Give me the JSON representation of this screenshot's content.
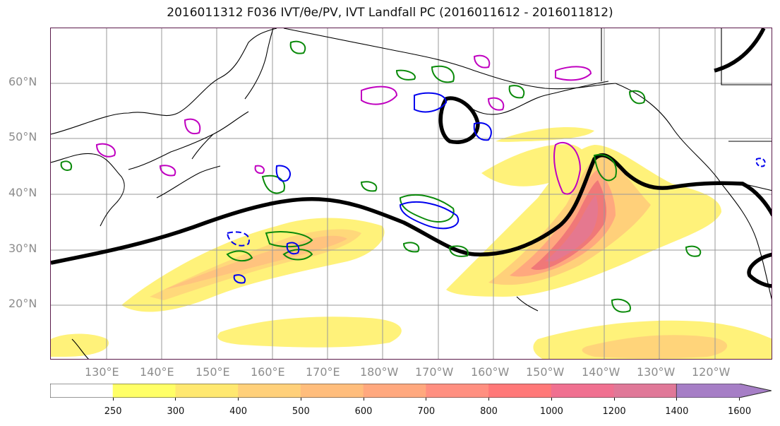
{
  "title": "2016011312 F036 IVT/θe/PV, IVT Landfall PC (2016011612 - 2016011812)",
  "map": {
    "latitude_labels": [
      "60°N",
      "50°N",
      "40°N",
      "30°N",
      "20°N"
    ],
    "longitude_labels": [
      "130°E",
      "140°E",
      "150°E",
      "160°E",
      "170°E",
      "180°W",
      "170°W",
      "160°W",
      "150°W",
      "140°W",
      "130°W",
      "120°W"
    ],
    "grid": true,
    "contour_colors": {
      "ivt_principal_component": "#000000",
      "positive_pv": "#0a8a0a",
      "negative_pv": "#0000ee",
      "theta_e": "#c000c0",
      "coastline": "#000000"
    }
  },
  "colorbar": {
    "ticks": [
      "250",
      "300",
      "400",
      "500",
      "600",
      "700",
      "800",
      "1000",
      "1200",
      "1400",
      "1600"
    ],
    "colors": [
      "#ffffff",
      "#ffff66",
      "#ffe870",
      "#ffd07a",
      "#ffbd7c",
      "#ffa87e",
      "#ff8f80",
      "#ff7878",
      "#f07090",
      "#e07898",
      "#b070b8",
      "#a67ec6"
    ],
    "extend": "max"
  }
}
